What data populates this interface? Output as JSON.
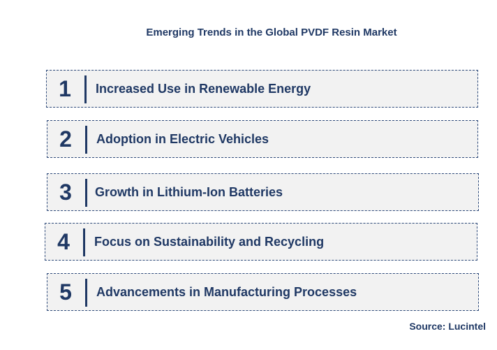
{
  "title": "Emerging Trends in the Global PVDF Resin Market",
  "trends": [
    {
      "number": "1",
      "label": "Increased Use in Renewable Energy"
    },
    {
      "number": "2",
      "label": "Adoption in Electric Vehicles"
    },
    {
      "number": "3",
      "label": "Growth in Lithium-Ion Batteries"
    },
    {
      "number": "4",
      "label": "Focus on Sustainability and Recycling"
    },
    {
      "number": "5",
      "label": "Advancements in Manufacturing Processes"
    }
  ],
  "source": "Source: Lucintel",
  "colors": {
    "text": "#1f3864",
    "box_fill": "#f2f2f2",
    "box_border": "#2e4a7a"
  }
}
